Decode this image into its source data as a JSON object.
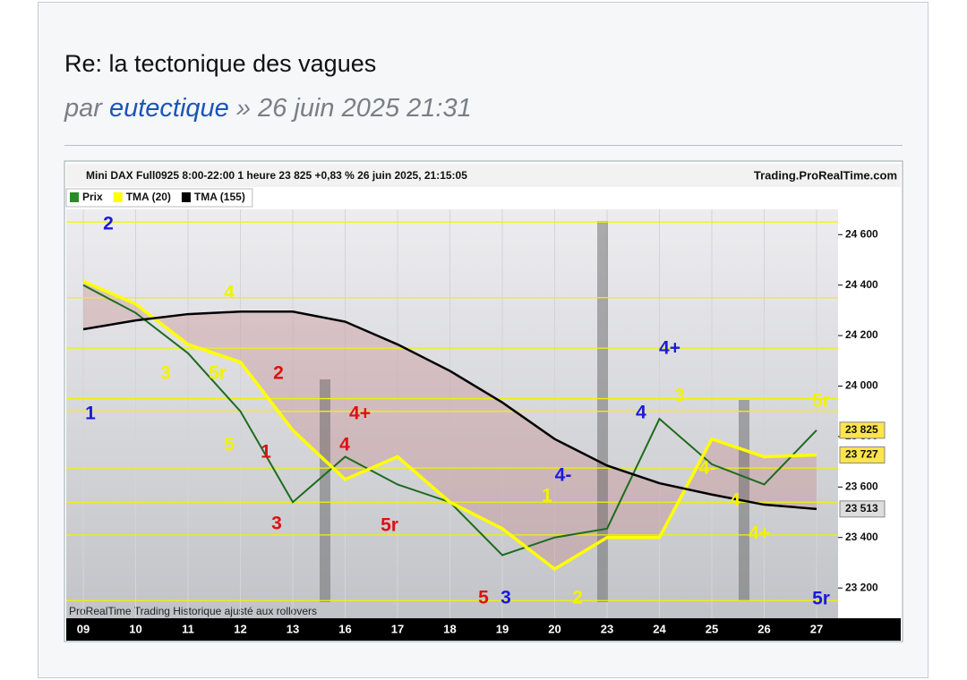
{
  "post": {
    "title": "Re: la tectonique des vagues",
    "by": "par",
    "author": "eutectique",
    "date": "» 26 juin 2025 21:31"
  },
  "chart_data": {
    "type": "line",
    "title": "Mini DAX Full0925 8:00-22:00 1 heure 23 825 +0,83 % 26 juin 2025, 21:15:05",
    "source": "Trading.ProRealTime.com",
    "footer": "ProRealTime Trading  Historique ajusté aux rollovers",
    "categories": [
      "09",
      "10",
      "11",
      "12",
      "13",
      "16",
      "17",
      "18",
      "19",
      "20",
      "23",
      "24",
      "25",
      "26",
      "27"
    ],
    "series": [
      {
        "name": "Prix",
        "color": "#1d6b1d",
        "values": [
          24400,
          24290,
          24130,
          23900,
          23540,
          23720,
          23610,
          23540,
          23330,
          23400,
          23435,
          23870,
          23690,
          23610,
          23825
        ]
      },
      {
        "name": "TMA (20)",
        "color": "#ffff00",
        "values": [
          24415,
          24325,
          24165,
          24095,
          23825,
          23630,
          23720,
          23540,
          23435,
          23275,
          23400,
          23400,
          23790,
          23720,
          23727
        ]
      },
      {
        "name": "TMA (155)",
        "color": "#000000",
        "values": [
          24225,
          24260,
          24285,
          24295,
          24295,
          24255,
          24165,
          24060,
          23935,
          23790,
          23685,
          23615,
          23570,
          23530,
          23513
        ]
      }
    ],
    "ylim": [
      23080,
      24700
    ],
    "yticks": [
      {
        "value": 23200,
        "label": "23 200"
      },
      {
        "value": 23400,
        "label": "23 400"
      },
      {
        "value": 23600,
        "label": "23 600"
      },
      {
        "value": 23800,
        "label": "23 800"
      },
      {
        "value": 24000,
        "label": "24 000"
      },
      {
        "value": 24200,
        "label": "24 200"
      },
      {
        "value": 24400,
        "label": "24 400"
      },
      {
        "value": 24600,
        "label": "24 600"
      }
    ],
    "levels": [
      24650,
      24350,
      24150,
      23950,
      23900,
      23675,
      23540,
      23410,
      23150
    ],
    "level_color": "#f2f200",
    "price_markers": [
      {
        "value": 23825,
        "label": "23 825",
        "color": "#ffe44d"
      },
      {
        "value": 23727,
        "label": "23 727",
        "color": "#ffe44d"
      },
      {
        "value": 23513,
        "label": "23 513",
        "color": "#dddddd"
      }
    ],
    "annotations": [
      {
        "text": "2",
        "color": "#1a1adc"
      },
      {
        "text": "4",
        "color": "#f2f200"
      },
      {
        "text": "3",
        "color": "#f2f200"
      },
      {
        "text": "5r",
        "color": "#f2f200"
      },
      {
        "text": "2",
        "color": "#e01010"
      },
      {
        "text": "1",
        "color": "#1a1adc"
      },
      {
        "text": "5",
        "color": "#f2f200"
      },
      {
        "text": "1",
        "color": "#e01010"
      },
      {
        "text": "4+",
        "color": "#e01010"
      },
      {
        "text": "4",
        "color": "#e01010"
      },
      {
        "text": "3",
        "color": "#e01010"
      },
      {
        "text": "5r",
        "color": "#e01010"
      },
      {
        "text": "1",
        "color": "#f2f200"
      },
      {
        "text": "4-",
        "color": "#1a1adc"
      },
      {
        "text": "5",
        "color": "#e01010"
      },
      {
        "text": "3",
        "color": "#1a1adc"
      },
      {
        "text": "2",
        "color": "#f2f200"
      },
      {
        "text": "4+",
        "color": "#1a1adc"
      },
      {
        "text": "3",
        "color": "#f2f200"
      },
      {
        "text": "4",
        "color": "#1a1adc"
      },
      {
        "text": "5r",
        "color": "#f2f200"
      },
      {
        "text": "4-",
        "color": "#f2f200"
      },
      {
        "text": "4",
        "color": "#f2f200"
      },
      {
        "text": "4+",
        "color": "#f2f200"
      },
      {
        "text": "5r",
        "color": "#1a1adc"
      }
    ]
  }
}
